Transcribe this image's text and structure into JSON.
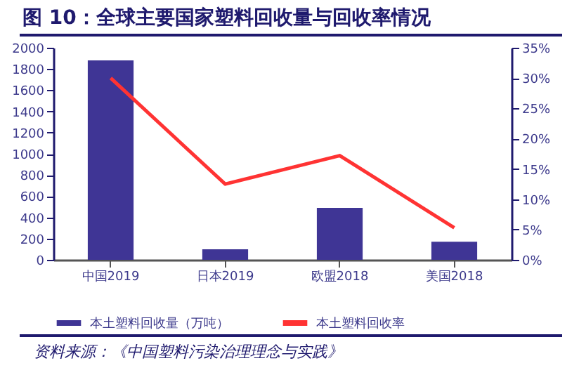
{
  "chart_data": {
    "type": "bar",
    "title": "图 10：全球主要国家塑料回收量与回收率情况",
    "categories": [
      "中国2019",
      "日本2019",
      "欧盟2018",
      "美国2018"
    ],
    "series": [
      {
        "name": "本土塑料回收量（万吨）",
        "color": "#3f3595",
        "values": [
          1880,
          100,
          490,
          170
        ]
      },
      {
        "name": "本土塑料回收率",
        "type": "line",
        "axis": "y2",
        "color": "#ff3333",
        "values": [
          30,
          12.5,
          17.2,
          5.3
        ]
      }
    ],
    "ylim": [
      0,
      2000
    ],
    "yticks": [
      0,
      200,
      400,
      600,
      800,
      1000,
      1200,
      1400,
      1600,
      1800,
      2000
    ],
    "y2lim": [
      0,
      35
    ],
    "y2ticks": [
      {
        "value": 0,
        "label": "0%"
      },
      {
        "value": 5,
        "label": "5%"
      },
      {
        "value": 10,
        "label": "10%"
      },
      {
        "value": 15,
        "label": "15%"
      },
      {
        "value": 20,
        "label": "20%"
      },
      {
        "value": 25,
        "label": "25%"
      },
      {
        "value": 30,
        "label": "30%"
      },
      {
        "value": 35,
        "label": "35%"
      }
    ],
    "legend": "bottom",
    "grid": false,
    "annotations": [
      "资料来源：《中国塑料污染治理理念与实践》"
    ]
  }
}
